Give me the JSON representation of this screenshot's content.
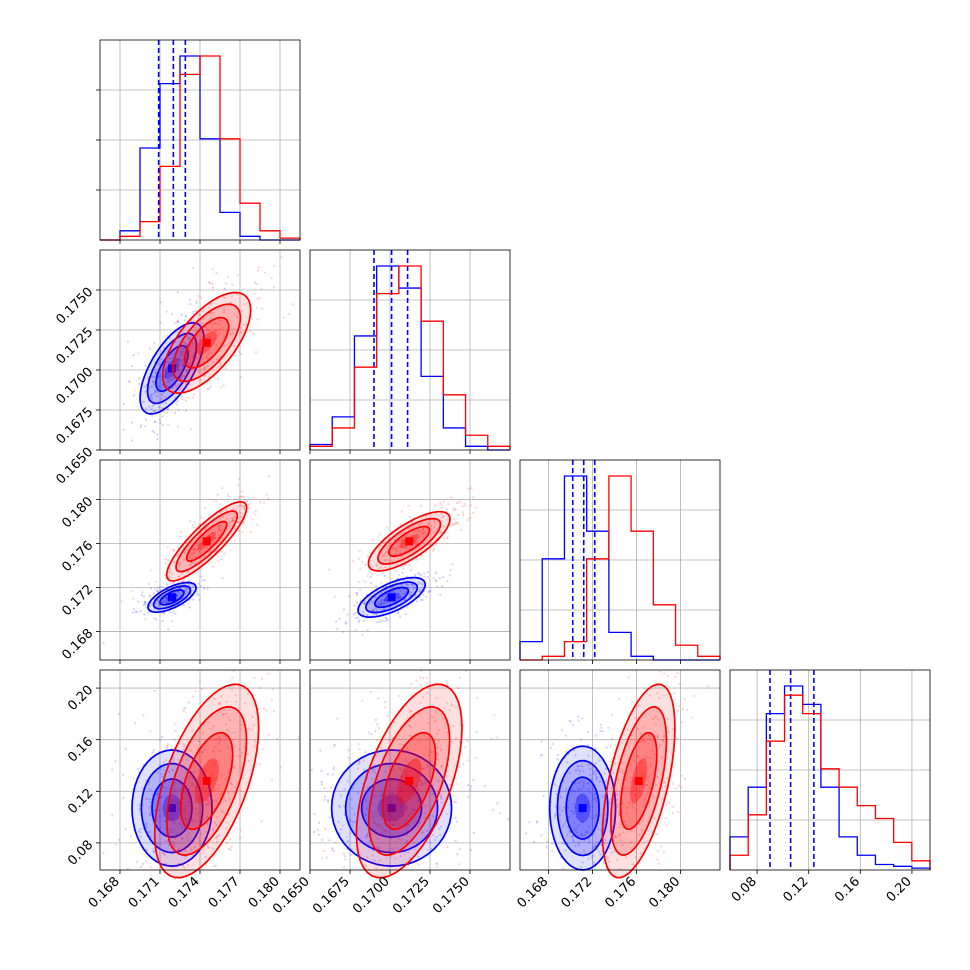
{
  "chart_data": {
    "type": "corner",
    "grid": true,
    "variables": [
      {
        "range": [
          0.1665,
          0.1815
        ],
        "ticks": [
          "0.168",
          "0.171",
          "0.174",
          "0.177",
          "0.180"
        ]
      },
      {
        "range": [
          0.165,
          0.1775
        ],
        "ticks": [
          "0.1650",
          "0.1675",
          "0.1700",
          "0.1725",
          "0.1750"
        ]
      },
      {
        "range": [
          0.1654,
          0.1836
        ],
        "ticks": [
          "0.168",
          "0.172",
          "0.176",
          "0.180"
        ]
      },
      {
        "range": [
          0.059,
          0.214
        ],
        "ticks": [
          "0.08",
          "0.12",
          "0.16",
          "0.20"
        ]
      }
    ],
    "series": [
      {
        "color": "#0000ff",
        "quantiles": [
          [
            0.1709,
            0.172,
            0.1729
          ],
          [
            0.169,
            0.1701,
            0.1711
          ],
          [
            0.1702,
            0.1712,
            0.1722
          ],
          [
            0.09,
            0.106,
            0.124
          ]
        ],
        "hist": [
          [
            0,
            0.05,
            0.5,
            0.85,
            1.0,
            0.55,
            0.15,
            0.02,
            0,
            0
          ],
          [
            0.03,
            0.18,
            0.62,
            1.0,
            0.88,
            0.4,
            0.12,
            0.02,
            0
          ],
          [
            0.1,
            0.55,
            1.0,
            0.7,
            0.15,
            0.02,
            0,
            0,
            0
          ],
          [
            0.18,
            0.45,
            0.85,
            1.0,
            0.9,
            0.45,
            0.18,
            0.08,
            0.03,
            0.02,
            0.01
          ]
        ],
        "centers": [
          [
            0.1719,
            0.1701
          ],
          [
            0.1719,
            0.1711
          ],
          [
            0.1701,
            0.1711
          ],
          [
            0.1719,
            0.107
          ],
          [
            0.1701,
            0.107
          ],
          [
            0.1711,
            0.107
          ]
        ],
        "contour_sizes": [
          [
            0.0016,
            0.0019,
            0.65
          ],
          [
            0.0012,
            0.0009,
            0.65
          ],
          [
            0.0014,
            0.0012,
            0.65
          ],
          [
            0.002,
            0.03,
            0
          ],
          [
            0.0025,
            0.03,
            0
          ],
          [
            0.002,
            0.032,
            0
          ]
        ]
      },
      {
        "color": "#ff0000",
        "quantiles": [],
        "hist": [
          [
            0,
            0.02,
            0.1,
            0.4,
            0.9,
            1.0,
            0.55,
            0.2,
            0.05,
            0.01
          ],
          [
            0.02,
            0.12,
            0.45,
            0.85,
            1.0,
            0.7,
            0.3,
            0.08,
            0.02
          ],
          [
            0,
            0.02,
            0.1,
            0.55,
            1.0,
            0.7,
            0.3,
            0.08,
            0.02
          ],
          [
            0.08,
            0.3,
            0.7,
            0.95,
            0.85,
            0.55,
            0.45,
            0.35,
            0.28,
            0.15,
            0.05
          ]
        ],
        "centers": [
          [
            0.1745,
            0.1717
          ],
          [
            0.1745,
            0.1762
          ],
          [
            0.1712,
            0.1762
          ],
          [
            0.1745,
            0.128
          ],
          [
            0.1712,
            0.128
          ],
          [
            0.1762,
            0.128
          ]
        ],
        "contour_sizes": [
          [
            0.0022,
            0.0021,
            0.65
          ],
          [
            0.002,
            0.0024,
            0.85
          ],
          [
            0.0017,
            0.0018,
            0.75
          ],
          [
            0.0026,
            0.05,
            0.55
          ],
          [
            0.0022,
            0.05,
            0.55
          ],
          [
            0.0022,
            0.05,
            0.55
          ]
        ]
      }
    ]
  }
}
